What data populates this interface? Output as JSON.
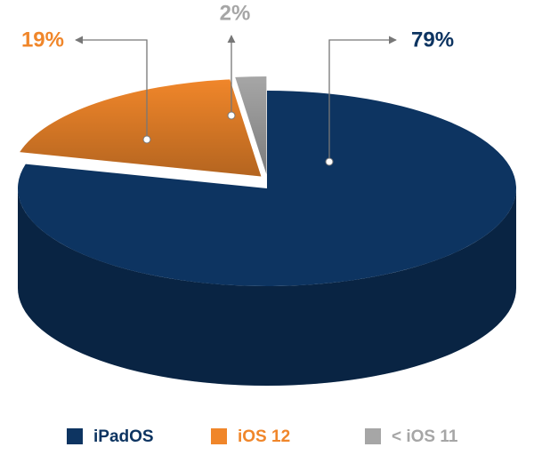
{
  "chart_data": {
    "type": "pie",
    "categories": [
      "iPadOS",
      "iOS 12",
      "< iOS 11"
    ],
    "values": [
      79,
      19,
      2
    ],
    "value_labels": [
      "79%",
      "19%",
      "2%"
    ],
    "colors": [
      "#0d3461",
      "#f0862a",
      "#a6a6a6"
    ],
    "legend": "bottom"
  }
}
